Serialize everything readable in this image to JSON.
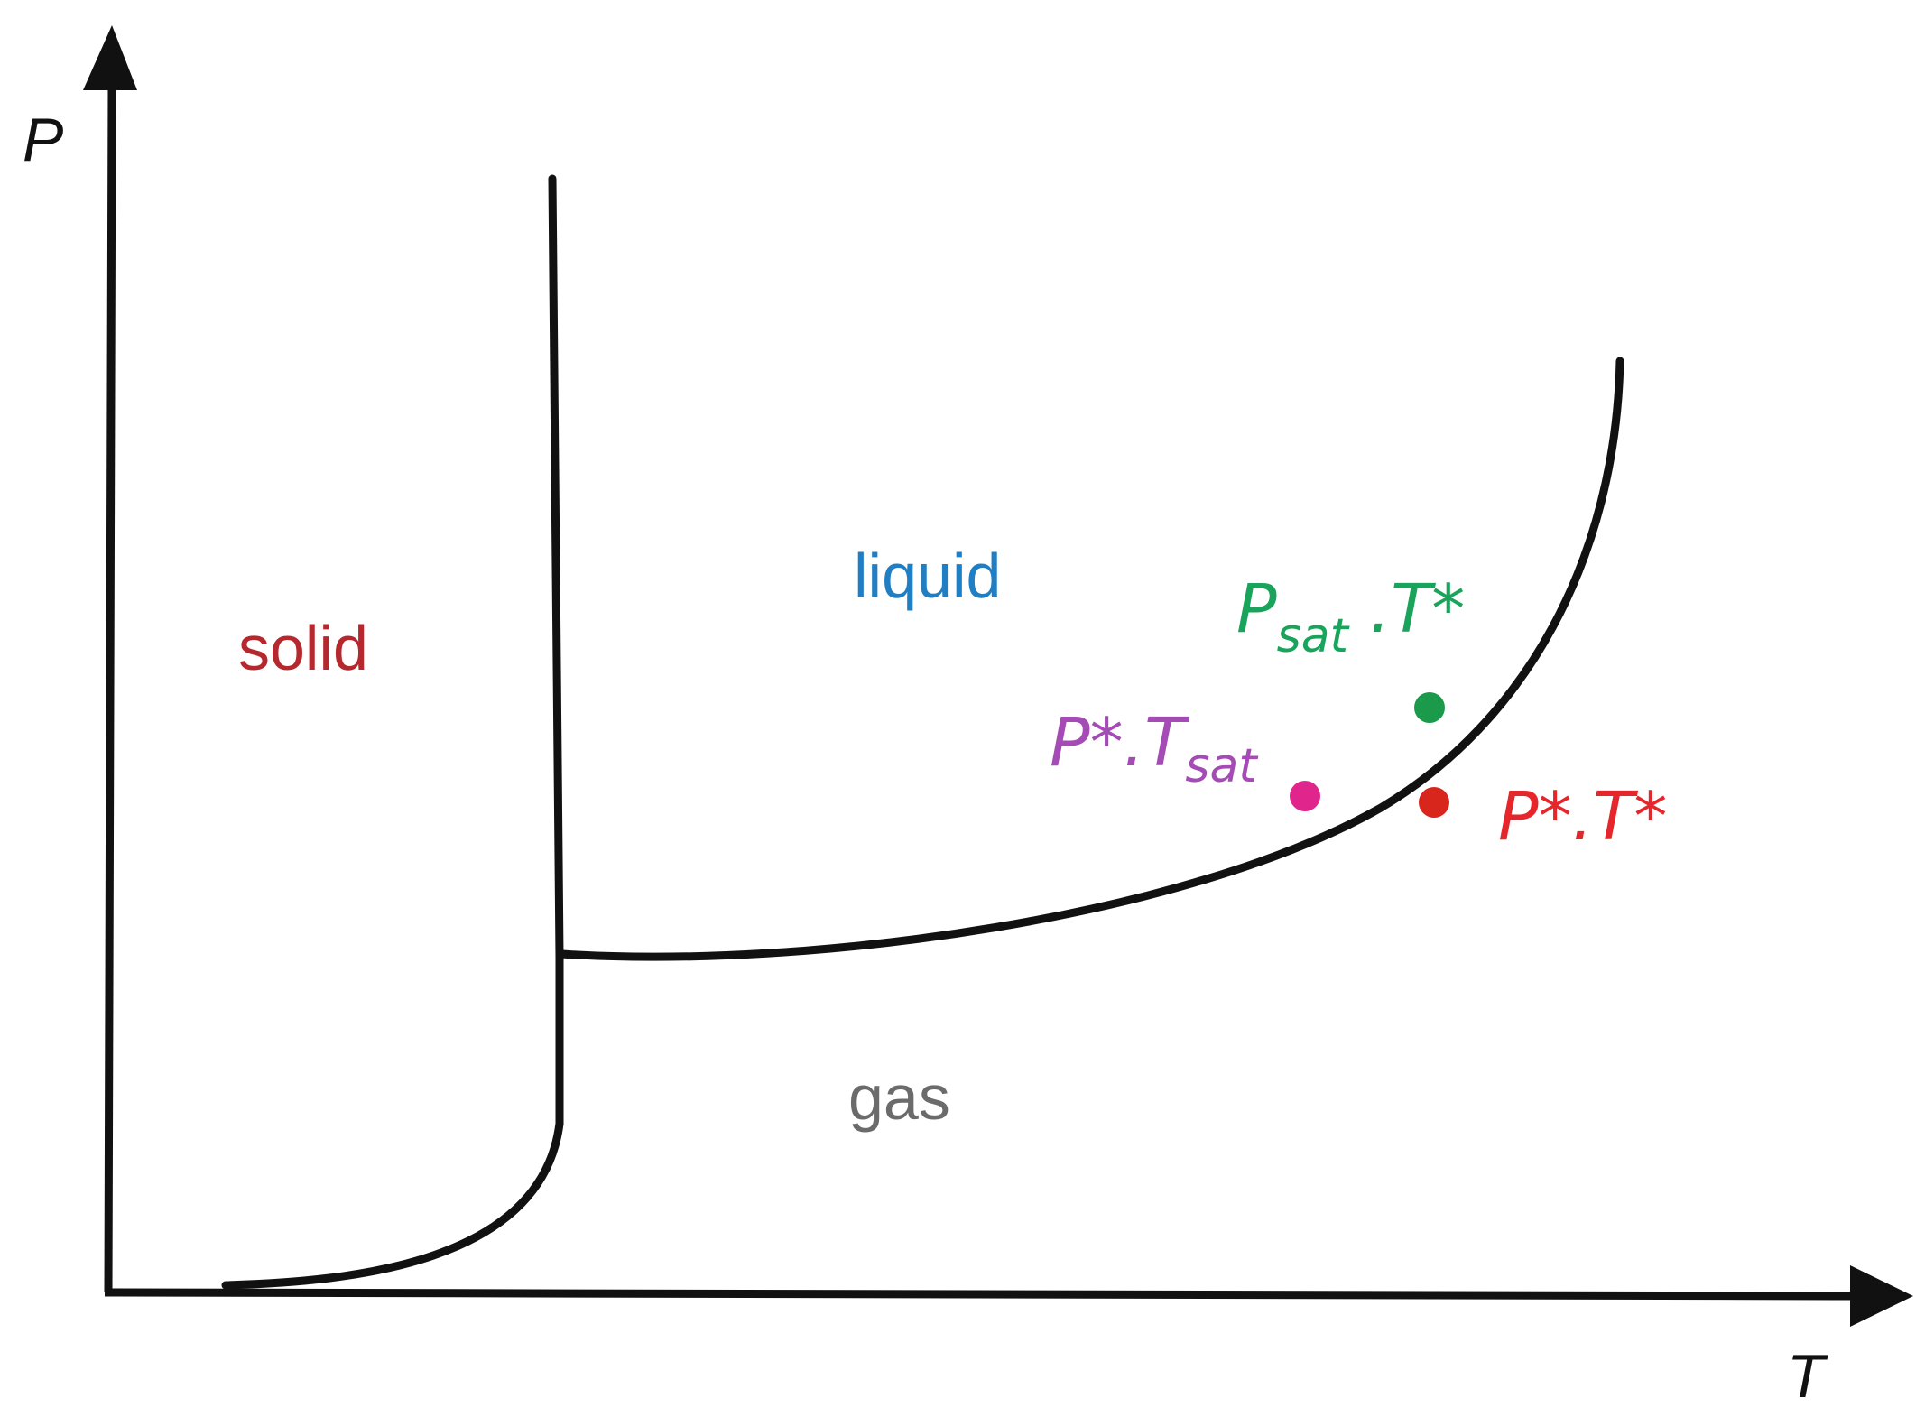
{
  "axes": {
    "y_label": "P",
    "x_label": "T"
  },
  "regions": {
    "solid": {
      "label": "solid",
      "color": "#b5282e"
    },
    "liquid": {
      "label": "liquid",
      "color": "#1f7ec4"
    },
    "gas": {
      "label": "gas",
      "color": "#6b6b6b"
    }
  },
  "points": {
    "psat_tstar": {
      "main": "P",
      "sub": "sat",
      "suffix": " .T*",
      "color": "#1aa35a"
    },
    "pstar_tsat": {
      "main": "P*.T",
      "sub": "sat",
      "color": "#a54bb5"
    },
    "pstar_tstar": {
      "label": "P*.T*",
      "color": "#e5262b"
    }
  },
  "colors": {
    "line": "#111111",
    "marker_green": "#1a9a4a",
    "marker_magenta": "#e0268c",
    "marker_red": "#d9261c"
  }
}
